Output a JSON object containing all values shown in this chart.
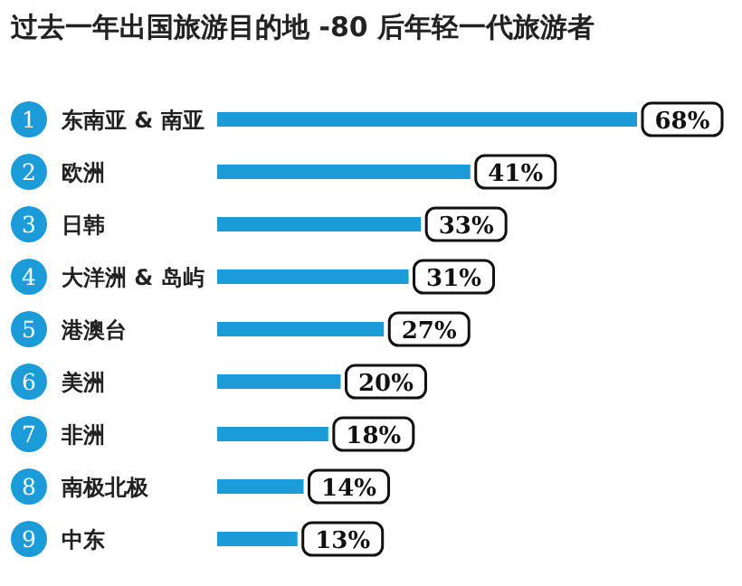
{
  "chart_data": {
    "type": "bar",
    "orientation": "horizontal",
    "title": "过去一年出国旅游目的地 -80 后年轻一代旅游者",
    "categories": [
      "东南亚 & 南亚",
      "欧洲",
      "日韩",
      "大洋洲 & 岛屿",
      "港澳台",
      "美洲",
      "非洲",
      "南极北极",
      "中东"
    ],
    "values": [
      68,
      41,
      33,
      31,
      27,
      20,
      18,
      14,
      13
    ],
    "value_labels": [
      "68%",
      "41%",
      "33%",
      "31%",
      "27%",
      "20%",
      "18%",
      "14%",
      "13%"
    ],
    "color": "#1b9bd7",
    "annotations": [
      "1",
      "2",
      "3",
      "4",
      "5",
      "6",
      "7",
      "8",
      "9"
    ]
  }
}
